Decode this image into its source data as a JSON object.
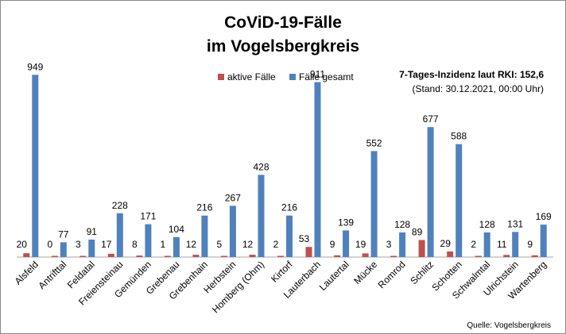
{
  "chart_data": {
    "type": "bar",
    "title_lines": [
      "CoViD-19-Fälle",
      "im Vogelsbergkreis"
    ],
    "categories": [
      "Alsfeld",
      "Antrifttal",
      "Feldatal",
      "Freiensteinau",
      "Gemünden",
      "Grebenau",
      "Grebenhain",
      "Herbstein",
      "Homberg (Ohm)",
      "Kirtorf",
      "Lauterbach",
      "Lautertal",
      "Mücke",
      "Romrod",
      "Schlitz",
      "Schotten",
      "Schwalmtal",
      "Ulrichstein",
      "Wartenberg"
    ],
    "series": [
      {
        "name": "aktive Fälle",
        "color": "#c0504d",
        "values": [
          20,
          0,
          3,
          17,
          8,
          1,
          12,
          5,
          12,
          2,
          53,
          9,
          19,
          3,
          89,
          29,
          2,
          11,
          9
        ]
      },
      {
        "name": "Fälle gesamt",
        "color": "#4f81bd",
        "values": [
          949,
          77,
          91,
          228,
          171,
          104,
          216,
          267,
          428,
          216,
          911,
          139,
          552,
          128,
          677,
          588,
          128,
          131,
          169
        ]
      }
    ],
    "ylim": [
      0,
      1000
    ],
    "grid": false,
    "legend_position": "top-center",
    "annotation_lines": [
      "7-Tages-Inzidenz laut RKI: 152,6",
      "(Stand: 30.12.2021, 00:00 Uhr)"
    ],
    "source": "Quelle: Vogelsbergkreis"
  }
}
